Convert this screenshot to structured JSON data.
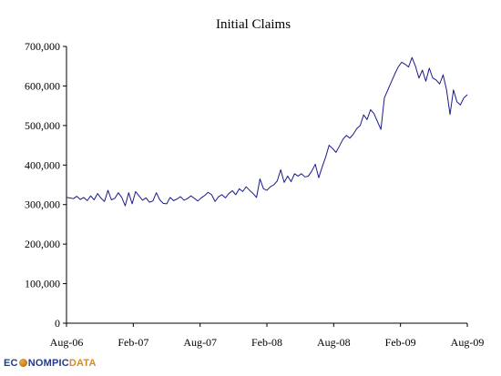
{
  "chart_data": {
    "type": "line",
    "title": "Initial Claims",
    "xlabel": "",
    "ylabel": "",
    "ylim": [
      0,
      700000
    ],
    "yticks": [
      0,
      100000,
      200000,
      300000,
      400000,
      500000,
      600000,
      700000
    ],
    "ytick_labels": [
      "0",
      "100,000",
      "200,000",
      "300,000",
      "400,000",
      "500,000",
      "600,000",
      "700,000"
    ],
    "xlim": [
      "2006-08",
      "2009-08"
    ],
    "xticks": [
      "Aug-06",
      "Feb-07",
      "Aug-07",
      "Feb-08",
      "Aug-08",
      "Feb-09",
      "Aug-09"
    ],
    "grid": false,
    "legend": "none",
    "series_color": "#1a1a8c",
    "series": [
      {
        "values": [
          [
            0.0,
            318000
          ],
          [
            0.23,
            317000
          ],
          [
            0.46,
            315000
          ],
          [
            0.69,
            321000
          ],
          [
            0.92,
            313000
          ],
          [
            1.15,
            318000
          ],
          [
            1.38,
            310000
          ],
          [
            1.61,
            322000
          ],
          [
            1.84,
            312000
          ],
          [
            2.07,
            328000
          ],
          [
            2.3,
            316000
          ],
          [
            2.53,
            308000
          ],
          [
            2.76,
            336000
          ],
          [
            2.99,
            312000
          ],
          [
            3.22,
            316000
          ],
          [
            3.45,
            330000
          ],
          [
            3.68,
            318000
          ],
          [
            3.91,
            297000
          ],
          [
            4.14,
            330000
          ],
          [
            4.37,
            302000
          ],
          [
            4.6,
            333000
          ],
          [
            4.83,
            322000
          ],
          [
            5.06,
            311000
          ],
          [
            5.29,
            317000
          ],
          [
            5.52,
            306000
          ],
          [
            5.75,
            309000
          ],
          [
            5.98,
            330000
          ],
          [
            6.21,
            312000
          ],
          [
            6.44,
            303000
          ],
          [
            6.67,
            302000
          ],
          [
            6.9,
            318000
          ],
          [
            7.13,
            310000
          ],
          [
            7.36,
            314000
          ],
          [
            7.59,
            320000
          ],
          [
            7.82,
            311000
          ],
          [
            8.05,
            315000
          ],
          [
            8.28,
            322000
          ],
          [
            8.51,
            316000
          ],
          [
            8.74,
            309000
          ],
          [
            8.97,
            317000
          ],
          [
            9.2,
            323000
          ],
          [
            9.43,
            331000
          ],
          [
            9.66,
            325000
          ],
          [
            9.89,
            308000
          ],
          [
            10.12,
            320000
          ],
          [
            10.35,
            325000
          ],
          [
            10.58,
            317000
          ],
          [
            10.81,
            328000
          ],
          [
            11.04,
            335000
          ],
          [
            11.27,
            325000
          ],
          [
            11.5,
            340000
          ],
          [
            11.73,
            333000
          ],
          [
            11.96,
            345000
          ],
          [
            12.19,
            336000
          ],
          [
            12.42,
            328000
          ],
          [
            12.65,
            318000
          ],
          [
            12.88,
            365000
          ],
          [
            13.11,
            340000
          ],
          [
            13.34,
            336000
          ],
          [
            13.57,
            345000
          ],
          [
            13.8,
            350000
          ],
          [
            14.03,
            360000
          ],
          [
            14.26,
            388000
          ],
          [
            14.49,
            356000
          ],
          [
            14.72,
            372000
          ],
          [
            14.95,
            358000
          ],
          [
            15.18,
            378000
          ],
          [
            15.41,
            372000
          ],
          [
            15.64,
            378000
          ],
          [
            15.87,
            370000
          ],
          [
            16.1,
            372000
          ],
          [
            16.33,
            385000
          ],
          [
            16.56,
            402000
          ],
          [
            16.79,
            368000
          ],
          [
            17.02,
            395000
          ],
          [
            17.25,
            420000
          ],
          [
            17.48,
            450000
          ],
          [
            17.71,
            442000
          ],
          [
            17.94,
            432000
          ],
          [
            18.17,
            448000
          ],
          [
            18.4,
            465000
          ],
          [
            18.63,
            475000
          ],
          [
            18.86,
            468000
          ],
          [
            19.09,
            478000
          ],
          [
            19.32,
            492000
          ],
          [
            19.55,
            500000
          ],
          [
            19.78,
            527000
          ],
          [
            20.01,
            515000
          ],
          [
            20.24,
            540000
          ],
          [
            20.47,
            530000
          ],
          [
            20.7,
            510000
          ],
          [
            20.93,
            490000
          ],
          [
            21.16,
            570000
          ],
          [
            21.39,
            590000
          ],
          [
            21.62,
            610000
          ],
          [
            21.85,
            630000
          ],
          [
            22.08,
            648000
          ],
          [
            22.31,
            660000
          ],
          [
            22.54,
            655000
          ],
          [
            22.77,
            648000
          ],
          [
            23.0,
            672000
          ],
          [
            23.23,
            650000
          ],
          [
            23.46,
            620000
          ],
          [
            23.69,
            640000
          ],
          [
            23.92,
            612000
          ],
          [
            24.15,
            645000
          ],
          [
            24.38,
            620000
          ],
          [
            24.61,
            615000
          ],
          [
            24.84,
            605000
          ],
          [
            25.07,
            628000
          ],
          [
            25.3,
            590000
          ],
          [
            25.53,
            528000
          ],
          [
            25.76,
            590000
          ],
          [
            25.99,
            560000
          ],
          [
            26.22,
            552000
          ],
          [
            26.45,
            570000
          ],
          [
            26.68,
            578000
          ]
        ]
      }
    ],
    "x_unit_note_hidden": true
  },
  "branding": {
    "logo_part1": "EC",
    "logo_part2": "NOMPIC",
    "logo_part3": "DATA"
  }
}
